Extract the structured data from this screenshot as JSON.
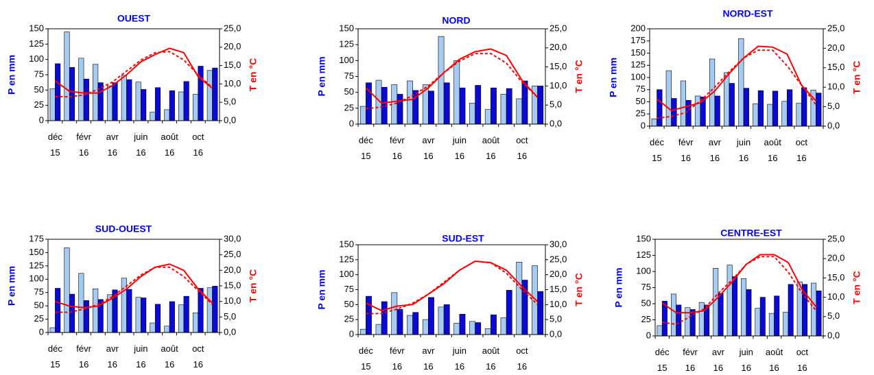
{
  "chart_data": [
    {
      "type": "bar-line",
      "title": "OUEST",
      "ylabel": "P en mm",
      "y2label": "T en °C",
      "categories": [
        "déc 15",
        null,
        "févr 16",
        null,
        "avr 16",
        null,
        "juin 16",
        null,
        "août 16",
        null,
        "oct 16",
        null
      ],
      "ylim": [
        0,
        150
      ],
      "yticks": [
        0,
        25,
        50,
        75,
        100,
        125,
        150
      ],
      "y2lim": [
        0,
        25
      ],
      "y2ticks": [
        {
          "value": 0,
          "label": "0,0"
        },
        {
          "value": 5,
          "label": "5,0"
        },
        {
          "value": 10,
          "label": "10,0"
        },
        {
          "value": 15,
          "label": "15,0"
        },
        {
          "value": 20,
          "label": "20,0"
        },
        {
          "value": 25,
          "label": "25,0"
        }
      ],
      "series": [
        {
          "type": "bar",
          "color": "#a6caf0",
          "values": [
            52,
            145,
            102,
            92,
            57,
            74,
            63,
            14,
            18,
            47,
            43,
            82
          ]
        },
        {
          "type": "bar",
          "color": "#0a0ad2",
          "values": [
            93,
            87,
            68,
            62,
            62,
            67,
            51,
            54,
            49,
            64,
            89,
            86
          ]
        },
        {
          "type": "line",
          "axis": "y2",
          "color": "#ff0000",
          "linestyle": "solid",
          "values": [
            10.8,
            8,
            7.5,
            7.5,
            9.5,
            12.5,
            16,
            18,
            19.7,
            18.5,
            12,
            8.8
          ]
        },
        {
          "type": "line",
          "axis": "y2",
          "color": "#ff0000",
          "linestyle": "dashed",
          "values": [
            6.5,
            6.5,
            7,
            8.5,
            10.5,
            13.5,
            16.5,
            18.5,
            18.8,
            16.5,
            12.5,
            9
          ]
        }
      ]
    },
    {
      "type": "bar-line",
      "title": "NORD",
      "ylabel": "P en mm",
      "y2label": "T en °C",
      "categories": [
        "déc 15",
        null,
        "févr 16",
        null,
        "avr 16",
        null,
        "juin 16",
        null,
        "août 16",
        null,
        "oct 16",
        null
      ],
      "ylim": [
        0,
        150
      ],
      "yticks": [
        0,
        25,
        50,
        75,
        100,
        125,
        150
      ],
      "y2lim": [
        0,
        25
      ],
      "y2ticks": [
        {
          "value": 0,
          "label": "0,0"
        },
        {
          "value": 5,
          "label": "5,0"
        },
        {
          "value": 10,
          "label": "10,0"
        },
        {
          "value": 15,
          "label": "15,0"
        },
        {
          "value": 20,
          "label": "20,0"
        },
        {
          "value": 25,
          "label": "25,0"
        }
      ],
      "series": [
        {
          "type": "bar",
          "color": "#a6caf0",
          "values": [
            28,
            69,
            62,
            68,
            62,
            138,
            100,
            33,
            23,
            47,
            40,
            60
          ]
        },
        {
          "type": "bar",
          "color": "#0a0ad2",
          "values": [
            65,
            58,
            47,
            53,
            52,
            65,
            57,
            61,
            57,
            56,
            68,
            60
          ]
        },
        {
          "type": "line",
          "axis": "y2",
          "color": "#ff0000",
          "linestyle": "solid",
          "values": [
            9.5,
            5.5,
            6,
            6.5,
            9.5,
            13.5,
            17,
            19,
            19.7,
            18,
            11.5,
            7
          ]
        },
        {
          "type": "line",
          "axis": "y2",
          "color": "#ff0000",
          "linestyle": "dashed",
          "values": [
            4,
            4.5,
            5.5,
            7.5,
            10,
            13.5,
            16.5,
            18.5,
            18.5,
            16,
            11,
            7
          ]
        }
      ]
    },
    {
      "type": "bar-line",
      "title": "NORD-EST",
      "ylabel": "P en mm",
      "y2label": "T en °C",
      "categories": [
        "déc 15",
        null,
        "févr 16",
        null,
        "avr 16",
        null,
        "juin 16",
        null,
        "août 16",
        null,
        "oct 16",
        null
      ],
      "ylim": [
        0,
        200
      ],
      "yticks": [
        0,
        25,
        50,
        75,
        100,
        125,
        150,
        175,
        200
      ],
      "y2lim": [
        0,
        25
      ],
      "y2ticks": [
        {
          "value": 0,
          "label": "0,0"
        },
        {
          "value": 5,
          "label": "5,0"
        },
        {
          "value": 10,
          "label": "10,0"
        },
        {
          "value": 15,
          "label": "15,0"
        },
        {
          "value": 20,
          "label": "20,0"
        },
        {
          "value": 25,
          "label": "25,0"
        }
      ],
      "series": [
        {
          "type": "bar",
          "color": "#a6caf0",
          "values": [
            15,
            114,
            93,
            62,
            138,
            110,
            180,
            46,
            45,
            51,
            47,
            74
          ]
        },
        {
          "type": "bar",
          "color": "#0a0ad2",
          "values": [
            75,
            57,
            53,
            60,
            62,
            88,
            78,
            73,
            72,
            75,
            79,
            68
          ]
        },
        {
          "type": "line",
          "axis": "y2",
          "color": "#ff0000",
          "linestyle": "solid",
          "values": [
            7,
            4,
            5,
            6,
            9,
            13.5,
            17.5,
            20.5,
            20.3,
            18.5,
            10.5,
            6.5
          ]
        },
        {
          "type": "line",
          "axis": "y2",
          "color": "#ff0000",
          "linestyle": "dashed",
          "values": [
            2,
            2.5,
            3.5,
            6.5,
            10,
            14,
            17.5,
            19.5,
            19.5,
            15.5,
            10.5,
            5.5
          ]
        }
      ]
    },
    {
      "type": "bar-line",
      "title": "SUD-OUEST",
      "ylabel": "P en mm",
      "y2label": "T en °C",
      "categories": [
        "déc 15",
        null,
        "févr 16",
        null,
        "avr 16",
        null,
        "juin 16",
        null,
        "août 16",
        null,
        "oct 16",
        null
      ],
      "ylim": [
        0,
        175
      ],
      "yticks": [
        0,
        25,
        50,
        75,
        100,
        125,
        150,
        175
      ],
      "y2lim": [
        0,
        30
      ],
      "y2ticks": [
        {
          "value": 0,
          "label": "0,0"
        },
        {
          "value": 5,
          "label": "5,0"
        },
        {
          "value": 10,
          "label": "10,0"
        },
        {
          "value": 15,
          "label": "15,0"
        },
        {
          "value": 20,
          "label": "20,0"
        },
        {
          "value": 25,
          "label": "25,0"
        },
        {
          "value": 30,
          "label": "30,0"
        }
      ],
      "series": [
        {
          "type": "bar",
          "color": "#a6caf0",
          "values": [
            9,
            159,
            111,
            82,
            71,
            102,
            66,
            18,
            12,
            52,
            37,
            84
          ]
        },
        {
          "type": "bar",
          "color": "#0a0ad2",
          "values": [
            83,
            72,
            60,
            62,
            80,
            81,
            65,
            53,
            58,
            68,
            83,
            87
          ]
        },
        {
          "type": "line",
          "axis": "y2",
          "color": "#ff0000",
          "linestyle": "solid",
          "values": [
            10,
            8.5,
            8,
            8.5,
            11,
            14,
            18,
            21,
            22,
            20,
            14,
            9.5
          ]
        },
        {
          "type": "line",
          "axis": "y2",
          "color": "#ff0000",
          "linestyle": "dashed",
          "values": [
            6.5,
            6.5,
            7.5,
            9,
            11.5,
            15,
            18.5,
            21,
            21,
            18,
            13.5,
            9
          ]
        }
      ]
    },
    {
      "type": "bar-line",
      "title": "SUD-EST",
      "ylabel": "P en mm",
      "y2label": "T en °C",
      "categories": [
        "déc 15",
        null,
        "févr 16",
        null,
        "avr 16",
        null,
        "juin 16",
        null,
        "août 16",
        null,
        "oct 16",
        null
      ],
      "ylim": [
        0,
        150
      ],
      "yticks": [
        0,
        25,
        50,
        75,
        100,
        125,
        150
      ],
      "y2lim": [
        0,
        30
      ],
      "y2ticks": [
        {
          "value": 0,
          "label": "0,0"
        },
        {
          "value": 5,
          "label": "5,0"
        },
        {
          "value": 10,
          "label": "10,0"
        },
        {
          "value": 15,
          "label": "15,0"
        },
        {
          "value": 20,
          "label": "20,0"
        },
        {
          "value": 25,
          "label": "25,0"
        },
        {
          "value": 30,
          "label": "30,0"
        }
      ],
      "series": [
        {
          "type": "bar",
          "color": "#a6caf0",
          "values": [
            9,
            17,
            70,
            32,
            25,
            46,
            19,
            22,
            10,
            28,
            121,
            115
          ]
        },
        {
          "type": "bar",
          "color": "#0a0ad2",
          "values": [
            64,
            55,
            42,
            37,
            62,
            50,
            34,
            20,
            33,
            74,
            91,
            72
          ]
        },
        {
          "type": "line",
          "axis": "y2",
          "color": "#ff0000",
          "linestyle": "solid",
          "values": [
            10.5,
            8,
            9.5,
            10,
            13.5,
            17,
            21.5,
            24.5,
            24,
            21.5,
            16,
            11
          ]
        },
        {
          "type": "line",
          "axis": "y2",
          "color": "#ff0000",
          "linestyle": "dashed",
          "values": [
            7,
            7,
            8.5,
            10.5,
            13.5,
            17.5,
            21.5,
            24.5,
            24,
            20.5,
            15,
            10
          ]
        }
      ]
    },
    {
      "type": "bar-line",
      "title": "CENTRE-EST",
      "ylabel": "P en mm",
      "y2label": "T en °C",
      "categories": [
        "déc 15",
        null,
        "févr 16",
        null,
        "avr 16",
        null,
        "juin 16",
        null,
        "août 16",
        null,
        "oct 16",
        null
      ],
      "ylim": [
        0,
        150
      ],
      "yticks": [
        0,
        25,
        50,
        75,
        100,
        125,
        150
      ],
      "y2lim": [
        0,
        25
      ],
      "y2ticks": [
        {
          "value": 0,
          "label": "0,0"
        },
        {
          "value": 5,
          "label": "5,0"
        },
        {
          "value": 10,
          "label": "10,0"
        },
        {
          "value": 15,
          "label": "15,0"
        },
        {
          "value": 20,
          "label": "20,0"
        },
        {
          "value": 25,
          "label": "25,0"
        }
      ],
      "series": [
        {
          "type": "bar",
          "color": "#a6caf0",
          "values": [
            16,
            65,
            44,
            52,
            105,
            110,
            89,
            43,
            35,
            37,
            84,
            82
          ]
        },
        {
          "type": "bar",
          "color": "#0a0ad2",
          "values": [
            54,
            48,
            41,
            48,
            66,
            92,
            72,
            60,
            62,
            80,
            80,
            70
          ]
        },
        {
          "type": "line",
          "axis": "y2",
          "color": "#ff0000",
          "linestyle": "solid",
          "values": [
            8.5,
            6,
            6,
            6.5,
            10,
            14,
            18.5,
            21,
            21,
            19,
            12,
            7.5
          ]
        },
        {
          "type": "line",
          "axis": "y2",
          "color": "#ff0000",
          "linestyle": "dashed",
          "values": [
            3.5,
            3,
            5,
            7,
            11,
            14.5,
            18.5,
            20.5,
            20.5,
            16.5,
            11,
            6.5
          ]
        }
      ]
    }
  ]
}
